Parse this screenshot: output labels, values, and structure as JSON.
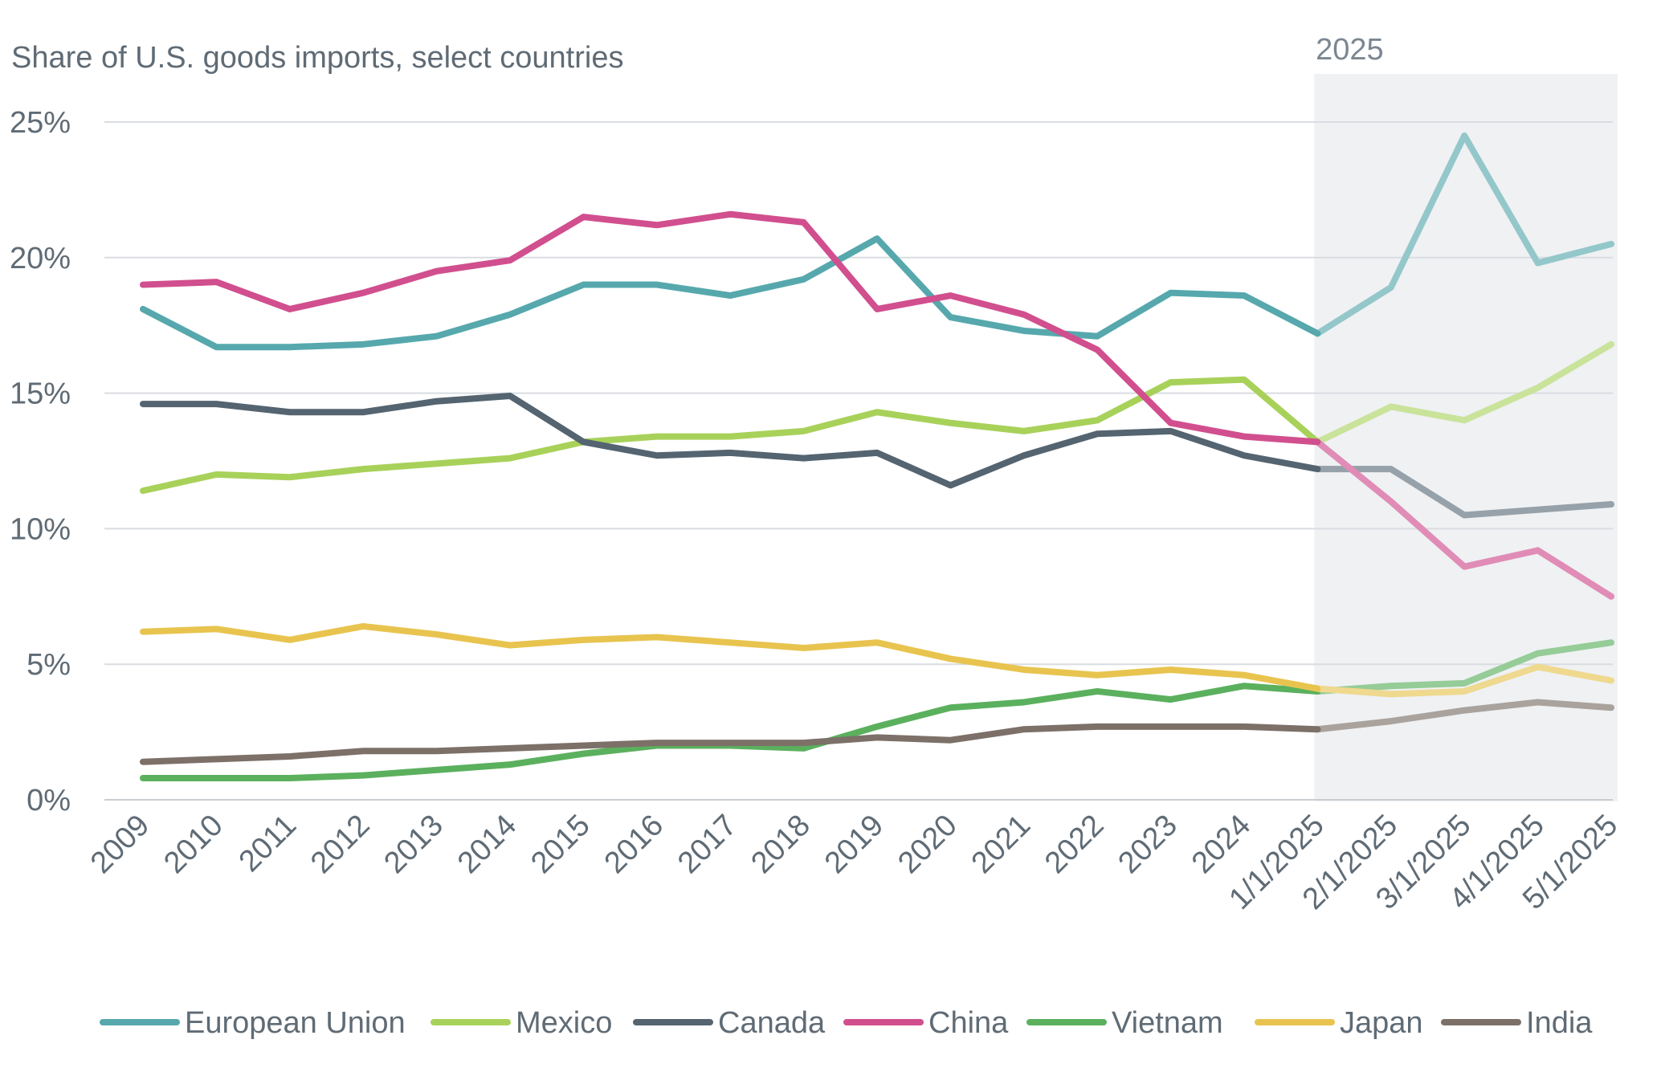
{
  "chart_data": {
    "type": "line",
    "title": "Share of U.S. goods imports, select countries",
    "highlight_label": "2025",
    "highlight_range": [
      "1/1/2025",
      "5/1/2025"
    ],
    "xlabel": "",
    "ylabel": "",
    "ylim": [
      0,
      25
    ],
    "yticks": [
      0,
      5,
      10,
      15,
      20,
      25
    ],
    "ytick_labels": [
      "0%",
      "5%",
      "10%",
      "15%",
      "20%",
      "25%"
    ],
    "grid": true,
    "legend_position": "bottom",
    "categories": [
      "2009",
      "2010",
      "2011",
      "2012",
      "2013",
      "2014",
      "2015",
      "2016",
      "2017",
      "2018",
      "2019",
      "2020",
      "2021",
      "2022",
      "2023",
      "2024",
      "1/1/2025",
      "2/1/2025",
      "3/1/2025",
      "4/1/2025",
      "5/1/2025"
    ],
    "series": [
      {
        "name": "European Union",
        "color": "#56a8ad",
        "light_color": "#94c7ca",
        "values": [
          18.1,
          16.7,
          16.7,
          16.8,
          17.1,
          17.9,
          19.0,
          19.0,
          18.6,
          19.2,
          20.7,
          17.8,
          17.3,
          17.1,
          18.7,
          18.6,
          17.2,
          18.9,
          24.5,
          19.8,
          20.5
        ]
      },
      {
        "name": "Mexico",
        "color": "#a8d15a",
        "light_color": "#c9e39a",
        "values": [
          11.4,
          12.0,
          11.9,
          12.2,
          12.4,
          12.6,
          13.2,
          13.4,
          13.4,
          13.6,
          14.3,
          13.9,
          13.6,
          14.0,
          15.4,
          15.5,
          13.2,
          14.5,
          14.0,
          15.2,
          16.8
        ]
      },
      {
        "name": "Canada",
        "color": "#546470",
        "light_color": "#96a1a9",
        "values": [
          14.6,
          14.6,
          14.3,
          14.3,
          14.7,
          14.9,
          13.2,
          12.7,
          12.8,
          12.6,
          12.8,
          11.6,
          12.7,
          13.5,
          13.6,
          12.7,
          12.2,
          12.2,
          10.5,
          10.7,
          10.9
        ]
      },
      {
        "name": "China",
        "color": "#d14f8e",
        "light_color": "#e08cb6",
        "values": [
          19.0,
          19.1,
          18.1,
          18.7,
          19.5,
          19.9,
          21.5,
          21.2,
          21.6,
          21.3,
          18.1,
          18.6,
          17.9,
          16.6,
          13.9,
          13.4,
          13.2,
          11.0,
          8.6,
          9.2,
          7.5
        ]
      },
      {
        "name": "Vietnam",
        "color": "#5bb05e",
        "light_color": "#95cc97",
        "values": [
          0.8,
          0.8,
          0.8,
          0.9,
          1.1,
          1.3,
          1.7,
          2.0,
          2.0,
          1.9,
          2.7,
          3.4,
          3.6,
          4.0,
          3.7,
          4.2,
          4.0,
          4.2,
          4.3,
          5.4,
          5.8
        ]
      },
      {
        "name": "Japan",
        "color": "#e8c44f",
        "light_color": "#efd98f",
        "values": [
          6.2,
          6.3,
          5.9,
          6.4,
          6.1,
          5.7,
          5.9,
          6.0,
          5.8,
          5.6,
          5.8,
          5.2,
          4.8,
          4.6,
          4.8,
          4.6,
          4.1,
          3.9,
          4.0,
          4.9,
          4.4
        ]
      },
      {
        "name": "India",
        "color": "#7c7068",
        "light_color": "#aaa39d",
        "values": [
          1.4,
          1.5,
          1.6,
          1.8,
          1.8,
          1.9,
          2.0,
          2.1,
          2.1,
          2.1,
          2.3,
          2.2,
          2.6,
          2.7,
          2.7,
          2.7,
          2.6,
          2.9,
          3.3,
          3.6,
          3.4
        ]
      }
    ]
  }
}
